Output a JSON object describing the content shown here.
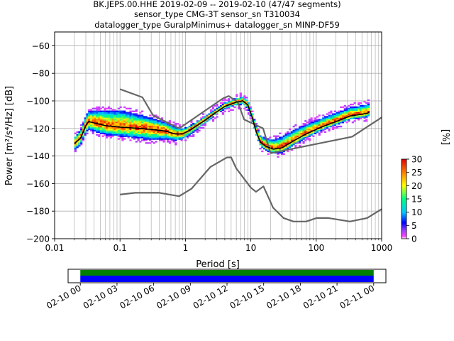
{
  "title_lines": [
    "BK.JEPS.00.HHE   2019-02-09 -- 2019-02-10  (47/47 segments)",
    "sensor_type CMG-3T sensor_sn T310034",
    "datalogger_type GuralpMinimus+ datalogger_sn MINP-DF59"
  ],
  "chart_data": {
    "type": "heatmap",
    "xlabel": "Period [s]",
    "ylabel": "Power [m²/s⁴/Hz] [dB]",
    "x_scale": "log",
    "xlim": [
      0.01,
      1000
    ],
    "ylim": [
      -200,
      -50
    ],
    "x_ticks": [
      0.01,
      0.1,
      1,
      10,
      100,
      1000
    ],
    "x_tick_labels": [
      "0.01",
      "0.1",
      "1",
      "10",
      "100",
      "1000"
    ],
    "y_ticks": [
      -200,
      -180,
      -160,
      -140,
      -120,
      -100,
      -80,
      -60
    ],
    "y_tick_labels": [
      "−200",
      "−180",
      "−160",
      "−140",
      "−120",
      "−100",
      "−80",
      "−60"
    ],
    "grid": true,
    "colorbar": {
      "label": "[%]",
      "min": 0,
      "max": 30,
      "ticks": [
        0,
        5,
        10,
        15,
        20,
        25,
        30
      ],
      "tick_labels": [
        "0",
        "5",
        "10",
        "15",
        "20",
        "25",
        "30"
      ]
    },
    "series": [
      {
        "role": "noise-model-high",
        "color": "#666666",
        "points": [
          [
            0.1,
            -91.5
          ],
          [
            0.22,
            -97.4
          ],
          [
            0.32,
            -110.5
          ],
          [
            0.8,
            -120
          ],
          [
            3.8,
            -98
          ],
          [
            4.6,
            -96.5
          ],
          [
            6.3,
            -101
          ],
          [
            7.9,
            -113.5
          ],
          [
            15.4,
            -120
          ],
          [
            20,
            -138
          ],
          [
            354,
            -126
          ],
          [
            1000,
            -112
          ]
        ]
      },
      {
        "role": "noise-model-low",
        "color": "#666666",
        "points": [
          [
            0.1,
            -168
          ],
          [
            0.17,
            -166.7
          ],
          [
            0.4,
            -166.7
          ],
          [
            0.8,
            -169.2
          ],
          [
            1.24,
            -163.7
          ],
          [
            2.4,
            -148
          ],
          [
            4.3,
            -141.1
          ],
          [
            5,
            -141
          ],
          [
            6,
            -149
          ],
          [
            10,
            -163
          ],
          [
            12,
            -166
          ],
          [
            15.6,
            -162
          ],
          [
            21.9,
            -177.5
          ],
          [
            31.6,
            -185
          ],
          [
            45,
            -187.5
          ],
          [
            70,
            -187.5
          ],
          [
            101,
            -185
          ],
          [
            154,
            -185
          ],
          [
            328,
            -187.5
          ],
          [
            600,
            -185
          ],
          [
            1000,
            -178.5
          ]
        ]
      },
      {
        "role": "median-psd",
        "color": "#000000",
        "points": [
          [
            0.02,
            -131
          ],
          [
            0.025,
            -127
          ],
          [
            0.03,
            -118
          ],
          [
            0.033,
            -115
          ],
          [
            0.04,
            -116
          ],
          [
            0.06,
            -118
          ],
          [
            0.1,
            -119
          ],
          [
            0.2,
            -120
          ],
          [
            0.35,
            -121
          ],
          [
            0.5,
            -122
          ],
          [
            0.7,
            -124
          ],
          [
            0.9,
            -124
          ],
          [
            1.2,
            -121
          ],
          [
            2,
            -114
          ],
          [
            3,
            -108
          ],
          [
            4,
            -104
          ],
          [
            6,
            -101
          ],
          [
            7.5,
            -100
          ],
          [
            9,
            -103
          ],
          [
            10.5,
            -112
          ],
          [
            12,
            -122
          ],
          [
            14,
            -130
          ],
          [
            17,
            -133
          ],
          [
            22,
            -135
          ],
          [
            30,
            -134
          ],
          [
            45,
            -129
          ],
          [
            70,
            -124
          ],
          [
            120,
            -119
          ],
          [
            200,
            -115
          ],
          [
            330,
            -111
          ],
          [
            600,
            -109
          ],
          [
            650,
            -108
          ]
        ]
      }
    ],
    "psd_band": {
      "x_range": [
        0.02,
        650
      ],
      "upper_offsets_db": [
        [
          0.02,
          4
        ],
        [
          0.05,
          10
        ],
        [
          0.1,
          12
        ],
        [
          0.3,
          8
        ],
        [
          1,
          3
        ],
        [
          3,
          2
        ],
        [
          10,
          3
        ],
        [
          30,
          8
        ],
        [
          100,
          6
        ],
        [
          600,
          6
        ]
      ],
      "lower_offsets_db": [
        [
          0.02,
          5
        ],
        [
          0.05,
          7
        ],
        [
          0.1,
          7
        ],
        [
          0.3,
          8
        ],
        [
          1,
          4
        ],
        [
          3,
          2
        ],
        [
          10,
          3
        ],
        [
          30,
          4
        ],
        [
          100,
          3
        ],
        [
          600,
          3
        ]
      ]
    },
    "colormap": [
      [
        0,
        "#ffffff"
      ],
      [
        0.03,
        "#ff40ff"
      ],
      [
        0.1,
        "#a040ff"
      ],
      [
        0.2,
        "#0000ff"
      ],
      [
        0.33,
        "#00c8ff"
      ],
      [
        0.5,
        "#00ff80"
      ],
      [
        0.67,
        "#ffff00"
      ],
      [
        0.83,
        "#ff8000"
      ],
      [
        1,
        "#e00000"
      ]
    ]
  },
  "timeline": {
    "tick_labels": [
      "02-10 00",
      "02-10 03",
      "02-10 06",
      "02-10 09",
      "02-10 12",
      "02-10 15",
      "02-10 18",
      "02-10 21",
      "02-11 00"
    ],
    "range_hours": [
      -1,
      25
    ],
    "coverage_hours": [
      0,
      24
    ],
    "colors": {
      "top": "#008000",
      "bottom": "#0000ff"
    }
  }
}
